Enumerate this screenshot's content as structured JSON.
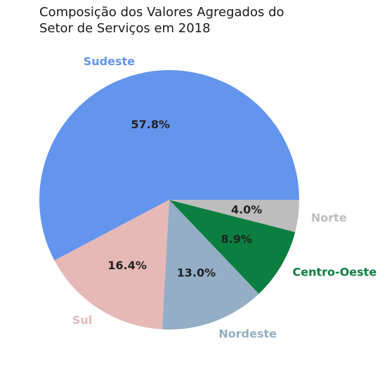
{
  "chart_data": {
    "type": "pie",
    "title_lines": [
      "Composição dos Valores Agregados do",
      "Setor de Serviços em 2018"
    ],
    "categories": [
      "Sudeste",
      "Sul",
      "Nordeste",
      "Centro-Oeste",
      "Norte"
    ],
    "values": [
      57.8,
      16.4,
      13.0,
      8.9,
      4.0
    ],
    "value_labels": [
      "57.8%",
      "16.4%",
      "13.0%",
      "8.9%",
      "4.0%"
    ],
    "colors": [
      "#6495ED",
      "#E6B9B6",
      "#94AEC5",
      "#0B7F3F",
      "#BDBDBD"
    ],
    "start_angle_deg": 0,
    "direction": "counterclockwise"
  }
}
